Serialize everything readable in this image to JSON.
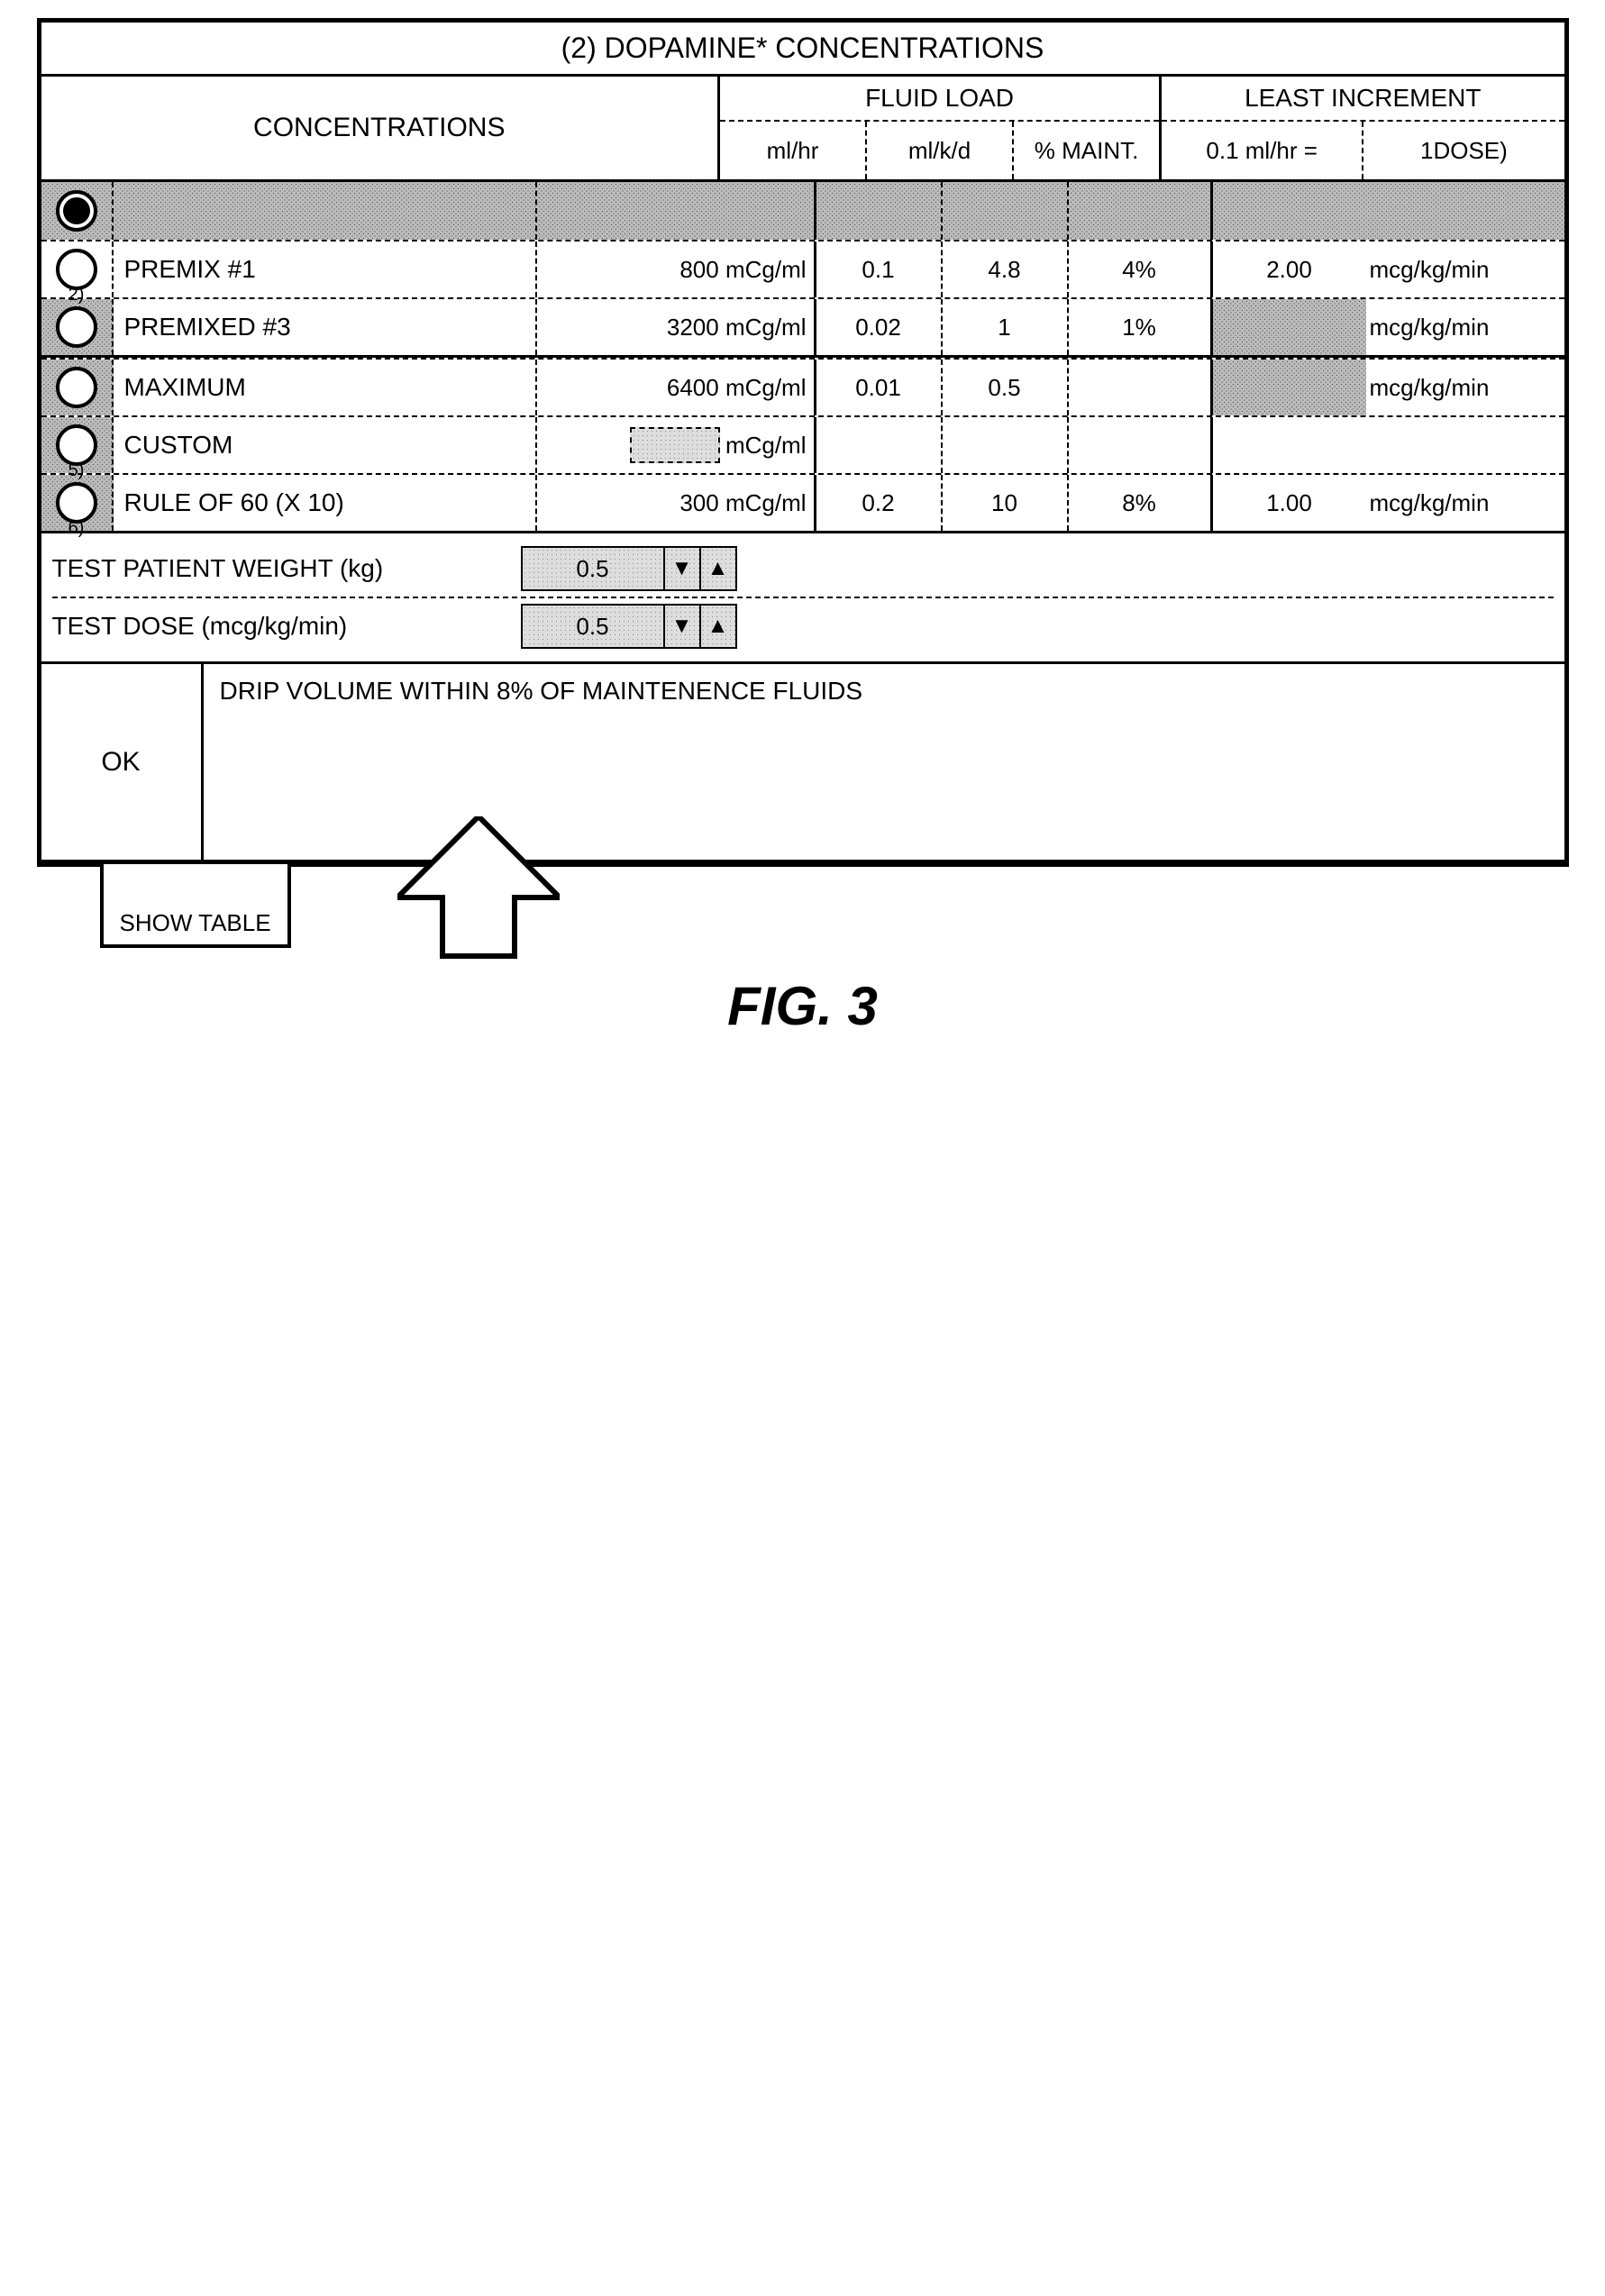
{
  "title": "(2) DOPAMINE* CONCENTRATIONS",
  "headers": {
    "concentrations": "CONCENTRATIONS",
    "fluid_load": "FLUID LOAD",
    "fluid_cols": {
      "mlhr": "ml/hr",
      "mlkd": "ml/k/d",
      "maint": "% MAINT."
    },
    "least": "LEAST INCREMENT",
    "least_cols": {
      "left": "0.1 ml/hr =",
      "right": "1DOSE)"
    }
  },
  "rows": [
    {
      "idx": "",
      "selected": true,
      "name": "",
      "conc": "",
      "mlhr": "",
      "mlkd": "",
      "maint": "",
      "least_v": "",
      "least_u": "",
      "row_noise": true
    },
    {
      "idx": "2)",
      "selected": false,
      "name": "PREMIX #1",
      "conc": "800 mCg/ml",
      "mlhr": "0.1",
      "mlkd": "4.8",
      "maint": "4%",
      "least_v": "2.00",
      "least_u": "mcg/kg/min"
    },
    {
      "idx": "",
      "selected": false,
      "name": "PREMIXED #3",
      "conc": "3200 mCg/ml",
      "mlhr": "0.02",
      "mlkd": "1",
      "maint": "1%",
      "least_v": "",
      "least_u": "mcg/kg/min",
      "radio_noise": true,
      "least_noise": true
    },
    {
      "idx": "",
      "hr": true
    },
    {
      "idx": "",
      "selected": false,
      "name": "MAXIMUM",
      "conc": "6400 mCg/ml",
      "mlhr": "0.01",
      "mlkd": "0.5",
      "maint": "",
      "least_v": "",
      "least_u": "mcg/kg/min",
      "radio_noise": true,
      "least_noise": true
    },
    {
      "idx": "5)",
      "selected": false,
      "name": "CUSTOM",
      "conc_custom": true,
      "conc_unit": "mCg/ml",
      "mlhr": "",
      "mlkd": "",
      "maint": "",
      "least_v": "",
      "least_u": "",
      "radio_noise": true
    },
    {
      "idx": "6)",
      "selected": false,
      "name": "RULE OF 60 (X 10)",
      "conc": "300 mCg/ml",
      "mlhr": "0.2",
      "mlkd": "10",
      "maint": "8%",
      "least_v": "1.00",
      "least_u": "mcg/kg/min",
      "radio_noise": true
    }
  ],
  "tests": {
    "weight_label": "TEST PATIENT WEIGHT (kg)",
    "weight_value": "0.5",
    "dose_label": "TEST DOSE (mcg/kg/min)",
    "dose_value": "0.5"
  },
  "status": {
    "ok": "OK",
    "message": "DRIP VOLUME WITHIN 8% OF MAINTENENCE FLUIDS"
  },
  "show_table": "SHOW TABLE",
  "figure": "FIG. 3"
}
